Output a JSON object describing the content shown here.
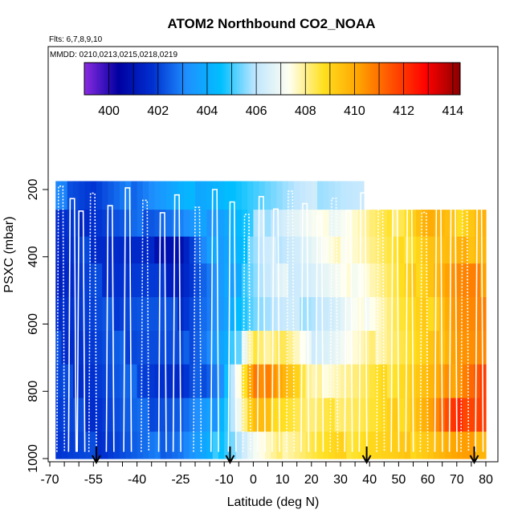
{
  "chart_data": {
    "type": "heatmap",
    "title": "ATOM2 Northbound CO2_NOAA",
    "subtitle_flights": "Flts: 6,7,8,9,10",
    "subtitle_dates": "MMDD: 0210,0213,0215,0218,0219",
    "xlabel": "Latitude (deg N)",
    "ylabel": "PSXC (mbar)",
    "xlim": [
      -70,
      82
    ],
    "ylim": [
      1020,
      130
    ],
    "x_tick_labels": [
      "-70",
      "-55",
      "-40",
      "-25",
      "-10",
      "0",
      "10",
      "20",
      "30",
      "40",
      "50",
      "60",
      "70",
      "80"
    ],
    "x_tick_values": [
      -70,
      -55,
      -40,
      -25,
      -10,
      0,
      10,
      20,
      30,
      40,
      50,
      60,
      70,
      80
    ],
    "x_minor_step": 5,
    "y_tick_labels": [
      "200",
      "400",
      "600",
      "800",
      "1000"
    ],
    "y_tick_values": [
      200,
      400,
      600,
      800,
      1000
    ],
    "colorbar": {
      "min": 399,
      "max": 414.3,
      "tick_labels": [
        "400",
        "402",
        "404",
        "406",
        "408",
        "410",
        "412",
        "414"
      ],
      "tick_values": [
        400,
        402,
        404,
        406,
        408,
        410,
        412,
        414
      ],
      "colors": [
        "#8a2be2",
        "#0000a0",
        "#0030d0",
        "#1e90ff",
        "#00bfff",
        "#bfe6ff",
        "#fffff0",
        "#ffe020",
        "#ffa500",
        "#ff5000",
        "#ff0000",
        "#8b0000"
      ]
    },
    "marker_latitudes": [
      -54,
      -8,
      39,
      76
    ],
    "pressure_bands": [
      {
        "p_top": 175,
        "p_bot": 260,
        "values": [
          [
            -68,
            403.5
          ],
          [
            -55,
            402.5
          ],
          [
            -40,
            403.5
          ],
          [
            -25,
            404.5
          ],
          [
            -10,
            405
          ],
          [
            5,
            405.5
          ],
          [
            20,
            406
          ],
          [
            38,
            406
          ]
        ]
      },
      {
        "p_top": 260,
        "p_bot": 340,
        "values": [
          [
            -68,
            402
          ],
          [
            -55,
            402.5
          ],
          [
            -40,
            403
          ],
          [
            -25,
            403.5
          ],
          [
            -10,
            404.5
          ],
          [
            0,
            405.5
          ],
          [
            10,
            406.5
          ],
          [
            20,
            407
          ],
          [
            30,
            407.3
          ],
          [
            40,
            408
          ],
          [
            50,
            408.5
          ],
          [
            60,
            410
          ],
          [
            70,
            409
          ],
          [
            80,
            410
          ]
        ]
      },
      {
        "p_top": 340,
        "p_bot": 420,
        "values": [
          [
            -68,
            402
          ],
          [
            -55,
            402.5
          ],
          [
            -40,
            402
          ],
          [
            -25,
            401.5
          ],
          [
            -15,
            404
          ],
          [
            -5,
            405
          ],
          [
            5,
            406
          ],
          [
            20,
            406.7
          ],
          [
            30,
            407.5
          ],
          [
            40,
            408
          ],
          [
            50,
            408.5
          ],
          [
            60,
            409.5
          ],
          [
            70,
            409.5
          ],
          [
            80,
            410
          ]
        ]
      },
      {
        "p_top": 420,
        "p_bot": 520,
        "values": [
          [
            -68,
            402
          ],
          [
            -55,
            402.5
          ],
          [
            -40,
            402.5
          ],
          [
            -25,
            402
          ],
          [
            -10,
            404
          ],
          [
            0,
            405.5
          ],
          [
            10,
            406.5
          ],
          [
            20,
            406.5
          ],
          [
            30,
            407
          ],
          [
            40,
            407.8
          ],
          [
            50,
            408.5
          ],
          [
            60,
            409.5
          ],
          [
            70,
            410.5
          ],
          [
            80,
            410.5
          ]
        ]
      },
      {
        "p_top": 520,
        "p_bot": 620,
        "values": [
          [
            -68,
            402.5
          ],
          [
            -55,
            402.5
          ],
          [
            -40,
            403
          ],
          [
            -25,
            402.5
          ],
          [
            -10,
            404
          ],
          [
            0,
            405.5
          ],
          [
            10,
            406
          ],
          [
            20,
            406
          ],
          [
            30,
            406.5
          ],
          [
            40,
            407.5
          ],
          [
            50,
            408.5
          ],
          [
            60,
            409
          ],
          [
            70,
            410.5
          ],
          [
            80,
            410.5
          ]
        ]
      },
      {
        "p_top": 620,
        "p_bot": 720,
        "values": [
          [
            -68,
            402.5
          ],
          [
            -55,
            402.5
          ],
          [
            -40,
            403
          ],
          [
            -25,
            402.5
          ],
          [
            -10,
            404.5
          ],
          [
            -5,
            405
          ],
          [
            0,
            409
          ],
          [
            5,
            408
          ],
          [
            10,
            408.5
          ],
          [
            20,
            406.5
          ],
          [
            30,
            407
          ],
          [
            40,
            407.8
          ],
          [
            50,
            408.5
          ],
          [
            60,
            409
          ],
          [
            70,
            410.5
          ],
          [
            80,
            410.5
          ]
        ]
      },
      {
        "p_top": 720,
        "p_bot": 820,
        "values": [
          [
            -68,
            402.5
          ],
          [
            -55,
            402.5
          ],
          [
            -40,
            403
          ],
          [
            -25,
            402
          ],
          [
            -10,
            404
          ],
          [
            0,
            410.5
          ],
          [
            5,
            411
          ],
          [
            10,
            410
          ],
          [
            15,
            409
          ],
          [
            20,
            407.5
          ],
          [
            30,
            408
          ],
          [
            40,
            408.3
          ],
          [
            50,
            409
          ],
          [
            60,
            409.5
          ],
          [
            70,
            410.5
          ],
          [
            80,
            412
          ]
        ]
      },
      {
        "p_top": 820,
        "p_bot": 920,
        "values": [
          [
            -68,
            402.5
          ],
          [
            -55,
            402.5
          ],
          [
            -40,
            403
          ],
          [
            -25,
            403
          ],
          [
            -10,
            404.5
          ],
          [
            0,
            409.5
          ],
          [
            10,
            409
          ],
          [
            20,
            408
          ],
          [
            30,
            408.5
          ],
          [
            40,
            408.5
          ],
          [
            50,
            409
          ],
          [
            60,
            410
          ],
          [
            70,
            412
          ],
          [
            80,
            412
          ]
        ]
      },
      {
        "p_top": 920,
        "p_bot": 1000,
        "values": [
          [
            -68,
            402.5
          ],
          [
            -55,
            402.5
          ],
          [
            -40,
            403
          ],
          [
            -25,
            403.5
          ],
          [
            -10,
            405
          ],
          [
            0,
            407
          ],
          [
            10,
            408
          ],
          [
            20,
            408.5
          ],
          [
            30,
            408.8
          ],
          [
            40,
            409
          ],
          [
            50,
            409
          ],
          [
            60,
            409.5
          ],
          [
            70,
            410
          ],
          [
            80,
            410
          ]
        ]
      }
    ]
  }
}
